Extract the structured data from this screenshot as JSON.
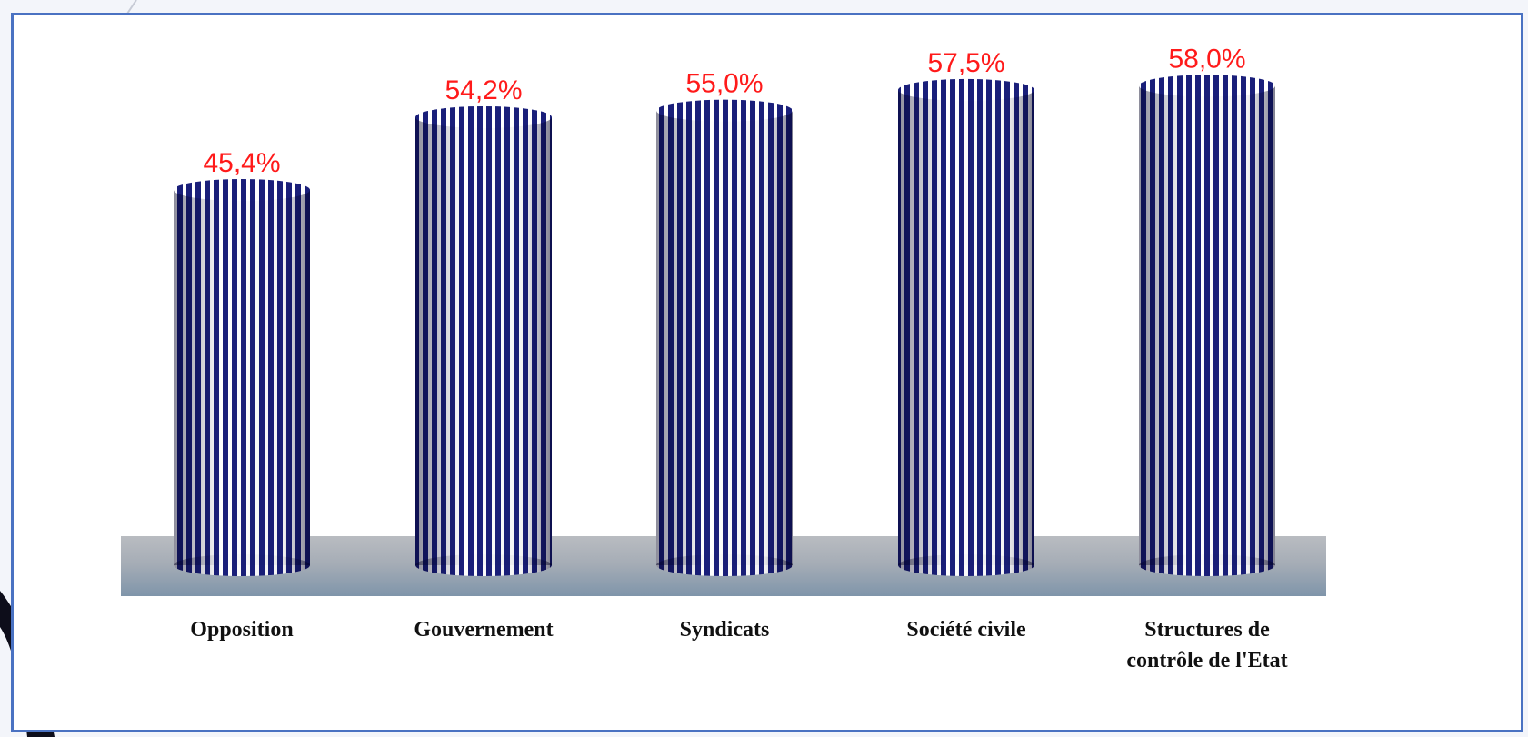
{
  "chart_data": {
    "type": "bar",
    "style": "3d-cylinder",
    "categories": [
      [
        "Opposition"
      ],
      [
        "Gouvernement"
      ],
      [
        "Syndicats"
      ],
      [
        "Société civile"
      ],
      [
        "Structures de",
        "contrôle de l'Etat"
      ]
    ],
    "values": [
      45.4,
      54.2,
      55.0,
      57.5,
      58.0
    ],
    "value_labels": [
      "45,4%",
      "54,2%",
      "55,0%",
      "57,5%",
      "58,0%"
    ],
    "title": "",
    "xlabel": "",
    "ylabel": "",
    "ylim": [
      0,
      100
    ],
    "grid": false,
    "legend": "none",
    "colors": {
      "bar_stripe_dark": "#1a1f7a",
      "bar_stripe_light": "#ffffff",
      "value_label": "#ff1a1a",
      "floor_top": "#b9bcc1",
      "floor_bottom": "#7f95aa",
      "frame_border": "#4a72c2"
    }
  }
}
